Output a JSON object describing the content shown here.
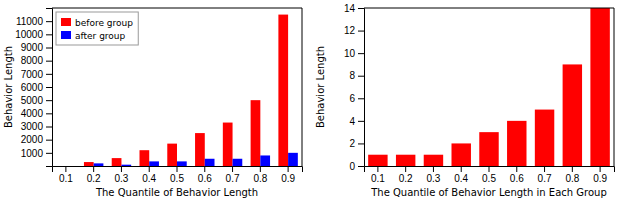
{
  "chart_data": [
    {
      "type": "bar",
      "categories": [
        "0.1",
        "0.2",
        "0.3",
        "0.4",
        "0.5",
        "0.6",
        "0.7",
        "0.8",
        "0.9"
      ],
      "series": [
        {
          "name": "before group",
          "color": "#ff0000",
          "values": [
            0,
            300,
            600,
            1200,
            1700,
            2500,
            3300,
            5000,
            11500
          ]
        },
        {
          "name": "after group",
          "color": "#0000ff",
          "values": [
            0,
            200,
            100,
            350,
            350,
            550,
            550,
            800,
            1000
          ]
        }
      ],
      "xlabel": "The Quantile of Behavior Length",
      "ylabel": "Behavior Length",
      "ylim": [
        0,
        12000
      ],
      "yticks": [
        1000,
        2000,
        3000,
        4000,
        5000,
        6000,
        7000,
        8000,
        9000,
        10000,
        11000
      ],
      "legend": "upper-left"
    },
    {
      "type": "bar",
      "categories": [
        "0.1",
        "0.2",
        "0.3",
        "0.4",
        "0.5",
        "0.6",
        "0.7",
        "0.8",
        "0.9"
      ],
      "values": [
        1,
        1,
        1,
        2,
        3,
        4,
        5,
        9,
        14
      ],
      "color": "#ff0000",
      "xlabel": "The Quantile of Behavior Length in Each Group",
      "ylabel": "Behavior Length",
      "ylim": [
        0,
        14
      ],
      "yticks": [
        0,
        2,
        4,
        6,
        8,
        10,
        12,
        14
      ]
    }
  ]
}
